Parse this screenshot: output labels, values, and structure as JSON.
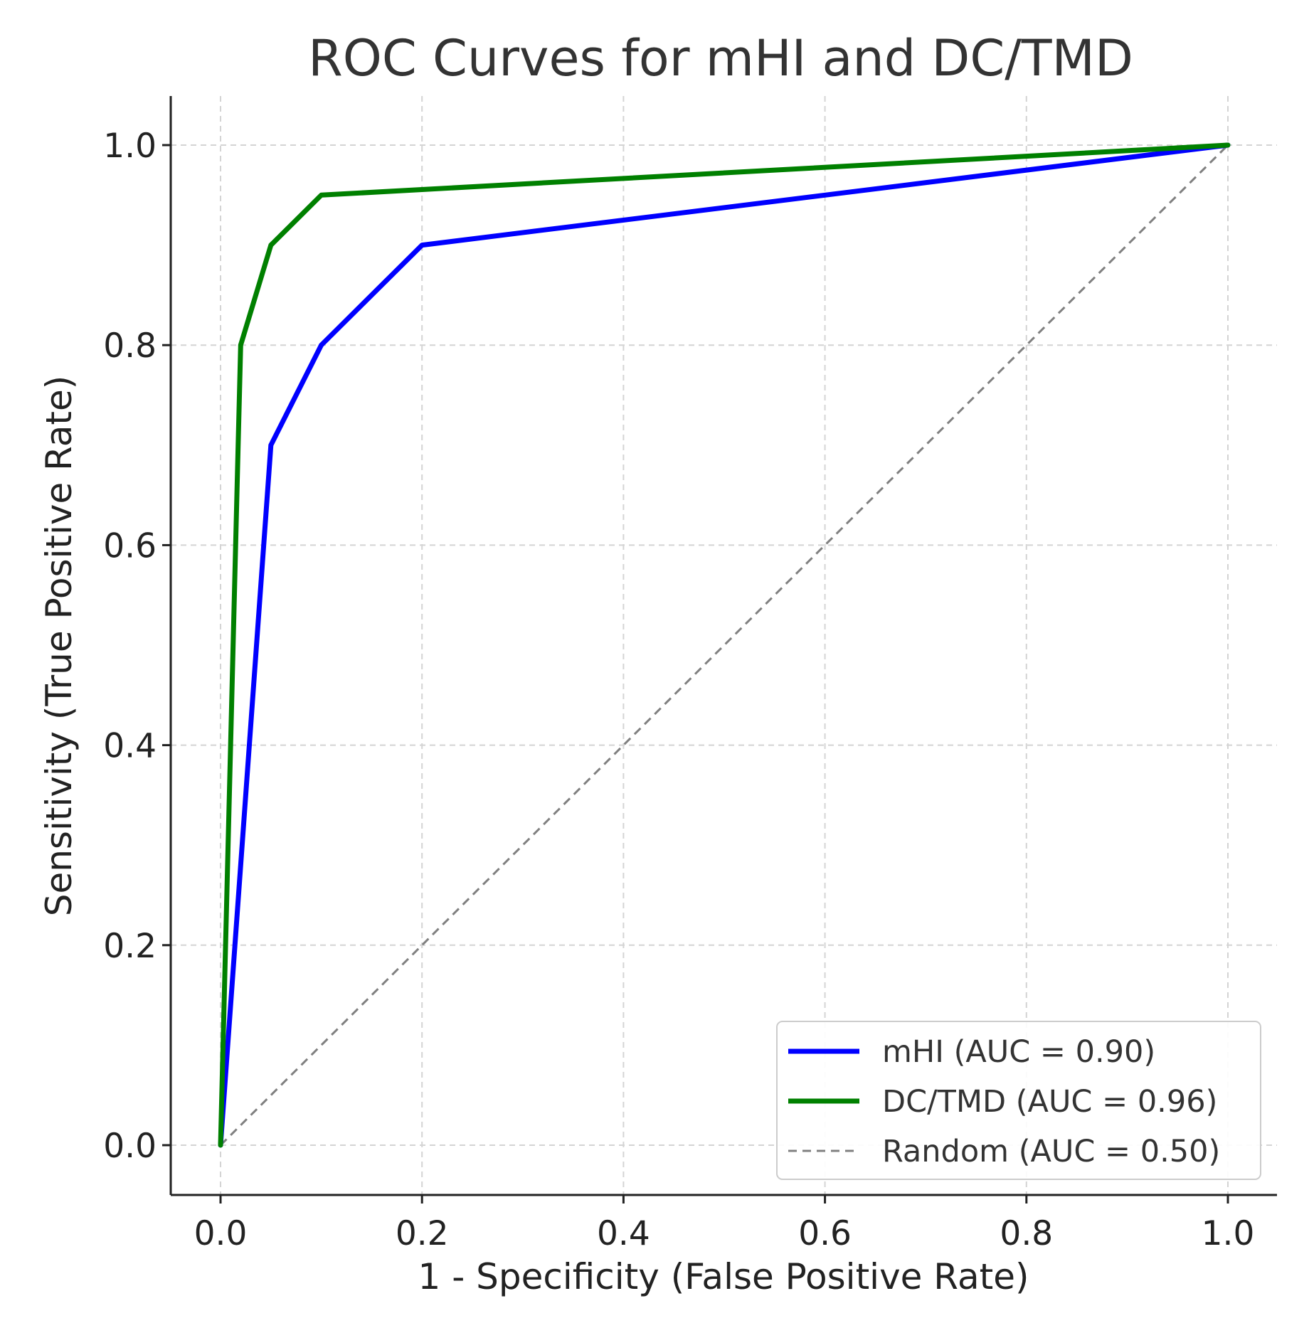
{
  "chart_data": {
    "type": "line",
    "title": "ROC Curves for mHI and DC/TMD",
    "xlabel": "1 - Specificity (False Positive Rate)",
    "ylabel": "Sensitivity (True Positive Rate)",
    "xlim": [
      -0.05,
      1.05
    ],
    "ylim": [
      -0.05,
      1.05
    ],
    "xticks": [
      0.0,
      0.2,
      0.4,
      0.6,
      0.8,
      1.0
    ],
    "yticks": [
      0.0,
      0.2,
      0.4,
      0.6,
      0.8,
      1.0
    ],
    "xtick_labels": [
      "0.0",
      "0.2",
      "0.4",
      "0.6",
      "0.8",
      "1.0"
    ],
    "ytick_labels": [
      "0.0",
      "0.2",
      "0.4",
      "0.6",
      "0.8",
      "1.0"
    ],
    "grid": true,
    "legend_position": "bottom-right",
    "series": [
      {
        "name": "mHI (AUC = 0.90)",
        "color": "#0000ff",
        "style": "solid",
        "x": [
          0.0,
          0.05,
          0.1,
          0.2,
          1.0
        ],
        "y": [
          0.0,
          0.7,
          0.8,
          0.9,
          1.0
        ]
      },
      {
        "name": "DC/TMD (AUC = 0.96)",
        "color": "#008000",
        "style": "solid",
        "x": [
          0.0,
          0.02,
          0.05,
          0.1,
          1.0
        ],
        "y": [
          0.0,
          0.8,
          0.9,
          0.95,
          1.0
        ]
      },
      {
        "name": "Random (AUC = 0.50)",
        "color": "#808080",
        "style": "dashed",
        "x": [
          0.0,
          1.0
        ],
        "y": [
          0.0,
          1.0
        ]
      }
    ]
  }
}
